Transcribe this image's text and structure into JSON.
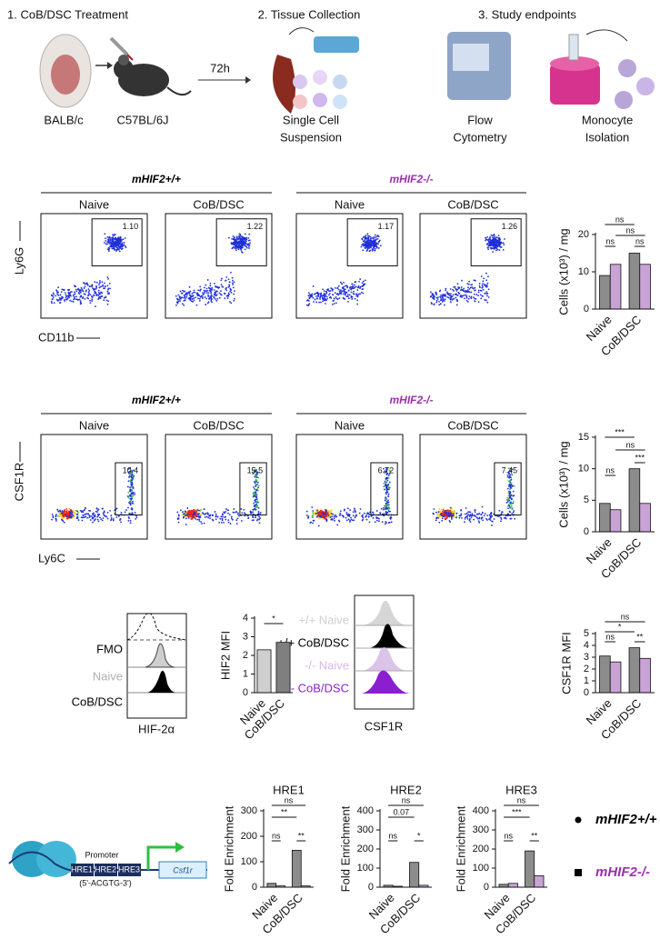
{
  "workflow": {
    "steps": [
      {
        "title": "1. CoB/DSC Treatment",
        "labels": [
          "BALB/c",
          "C57BL/6J"
        ]
      },
      {
        "title": "2. Tissue Collection",
        "labels": [
          "Single Cell",
          "Suspension"
        ]
      },
      {
        "title": "3. Study endpoints",
        "labels": [
          "Flow",
          "Cytometry",
          "Monocyte",
          "Isolation"
        ]
      }
    ],
    "arrow_label": "72h"
  },
  "flow_panels": [
    {
      "groups": [
        "mHIF2+/+",
        "mHIF2-/-"
      ],
      "group_colors": [
        "#000000",
        "#9b2fae"
      ],
      "conditions": [
        "Naive",
        "CoB/DSC",
        "Naive",
        "CoB/DSC"
      ],
      "gates": [
        "1.10",
        "1.22",
        "1.17",
        "1.26"
      ],
      "y_axis_label": "Ly6G",
      "x_axis_label": "CD11b"
    },
    {
      "groups": [
        "mHIF2+/+",
        "mHIF2-/-"
      ],
      "group_colors": [
        "#000000",
        "#9b2fae"
      ],
      "conditions": [
        "Naive",
        "CoB/DSC",
        "Naive",
        "CoB/DSC"
      ],
      "gates": [
        "10.4",
        "15.5",
        "6.72",
        "7.45"
      ],
      "y_axis_label": "CSF1R",
      "x_axis_label": "Ly6C"
    }
  ],
  "histograms": [
    {
      "labels": [
        "FMO",
        "Naive",
        "CoB/DSC"
      ],
      "label_colors": [
        "#000000",
        "#b0b0b0",
        "#000000"
      ],
      "x_axis_label": "HIF-2α"
    },
    {
      "labels": [
        "+/+ Naive",
        "+/+ CoB/DSC",
        "-/- Naive",
        "-/- CoB/DSC"
      ],
      "label_colors": [
        "#cfcfcf",
        "#000000",
        "#d9b8e6",
        "#8a1fd1"
      ],
      "x_axis_label": "CSF1R"
    }
  ],
  "promoter_diagram": {
    "promoter": "Promoter",
    "elements": [
      "HRE1",
      "HRE2",
      "HRE3"
    ],
    "motif": "(5'-ACGTG-3')",
    "gene": "Csf1r"
  },
  "legend": [
    {
      "name": "mHIF2+/+",
      "color": "#000000"
    },
    {
      "name": "mHIF2-/-",
      "color": "#9b2fae"
    }
  ],
  "charts": [
    {
      "type": "bar",
      "ylabel": "Cells (x10³) / mg",
      "categories": [
        "Naive",
        "CoB/DSC"
      ],
      "series": [
        {
          "name": "mHIF2+/+",
          "color": "#8c8c8c",
          "values": [
            9,
            15
          ]
        },
        {
          "name": "mHIF2-/-",
          "color": "#c9a3d6",
          "values": [
            12,
            12
          ]
        }
      ],
      "ylim": [
        0,
        20
      ],
      "yticks": [
        0,
        10,
        20
      ],
      "significance": [
        "ns",
        "ns",
        "ns",
        "ns"
      ]
    },
    {
      "type": "bar",
      "ylabel": "Cells (x10³) / mg",
      "categories": [
        "Naive",
        "CoB/DSC"
      ],
      "series": [
        {
          "name": "mHIF2+/+",
          "color": "#8c8c8c",
          "values": [
            4.5,
            10
          ]
        },
        {
          "name": "mHIF2-/-",
          "color": "#c9a3d6",
          "values": [
            3.5,
            4.5
          ]
        }
      ],
      "ylim": [
        0,
        15
      ],
      "yticks": [
        0,
        5,
        10,
        15
      ],
      "significance": [
        "***",
        "ns",
        "***",
        "ns"
      ]
    },
    {
      "type": "bar",
      "ylabel": "HIF2 MFI",
      "categories": [
        "Naive",
        "CoB/DSC"
      ],
      "series": [
        {
          "values": [
            2.3,
            2.7
          ],
          "colors": [
            "#cfcfcf",
            "#7f7f7f"
          ]
        }
      ],
      "ylim": [
        0,
        4
      ],
      "yticks": [
        0,
        1,
        2,
        3,
        4
      ],
      "significance": [
        "*"
      ]
    },
    {
      "type": "bar",
      "ylabel": "CSF1R MFI",
      "categories": [
        "Naive",
        "CoB/DSC"
      ],
      "series": [
        {
          "name": "mHIF2+/+",
          "color": "#8c8c8c",
          "values": [
            3.1,
            3.8
          ]
        },
        {
          "name": "mHIF2-/-",
          "color": "#c9a3d6",
          "values": [
            2.6,
            2.9
          ]
        }
      ],
      "ylim": [
        0,
        5
      ],
      "yticks": [
        0,
        1,
        2,
        3,
        4,
        5
      ],
      "significance": [
        "ns",
        "*",
        "ns",
        "**"
      ]
    },
    {
      "type": "bar",
      "title": "HRE1",
      "ylabel": "Fold Enrichment",
      "categories": [
        "Naive",
        "CoB/DSC"
      ],
      "series": [
        {
          "name": "mHIF2+/+",
          "color": "#8c8c8c",
          "values": [
            15,
            145
          ]
        },
        {
          "name": "mHIF2-/-",
          "color": "#c9a3d6",
          "values": [
            5,
            5
          ]
        }
      ],
      "ylim": [
        0,
        300
      ],
      "yticks": [
        0,
        100,
        200,
        300
      ],
      "significance": [
        "ns",
        "**",
        "ns",
        "**"
      ]
    },
    {
      "type": "bar",
      "title": "HRE2",
      "ylabel": "Fold Enrichment",
      "categories": [
        "Naive",
        "CoB/DSC"
      ],
      "series": [
        {
          "name": "mHIF2+/+",
          "color": "#8c8c8c",
          "values": [
            10,
            130
          ]
        },
        {
          "name": "mHIF2-/-",
          "color": "#c9a3d6",
          "values": [
            5,
            10
          ]
        }
      ],
      "ylim": [
        0,
        400
      ],
      "yticks": [
        0,
        100,
        200,
        300,
        400
      ],
      "significance": [
        "ns",
        "0.07",
        "ns",
        "*"
      ]
    },
    {
      "type": "bar",
      "title": "HRE3",
      "ylabel": "Fold Enrichment",
      "categories": [
        "Naive",
        "CoB/DSC"
      ],
      "series": [
        {
          "name": "mHIF2+/+",
          "color": "#8c8c8c",
          "values": [
            15,
            190
          ]
        },
        {
          "name": "mHIF2-/-",
          "color": "#c9a3d6",
          "values": [
            20,
            60
          ]
        }
      ],
      "ylim": [
        0,
        400
      ],
      "yticks": [
        0,
        100,
        200,
        300,
        400
      ],
      "significance": [
        "ns",
        "***",
        "ns",
        "**"
      ]
    }
  ]
}
